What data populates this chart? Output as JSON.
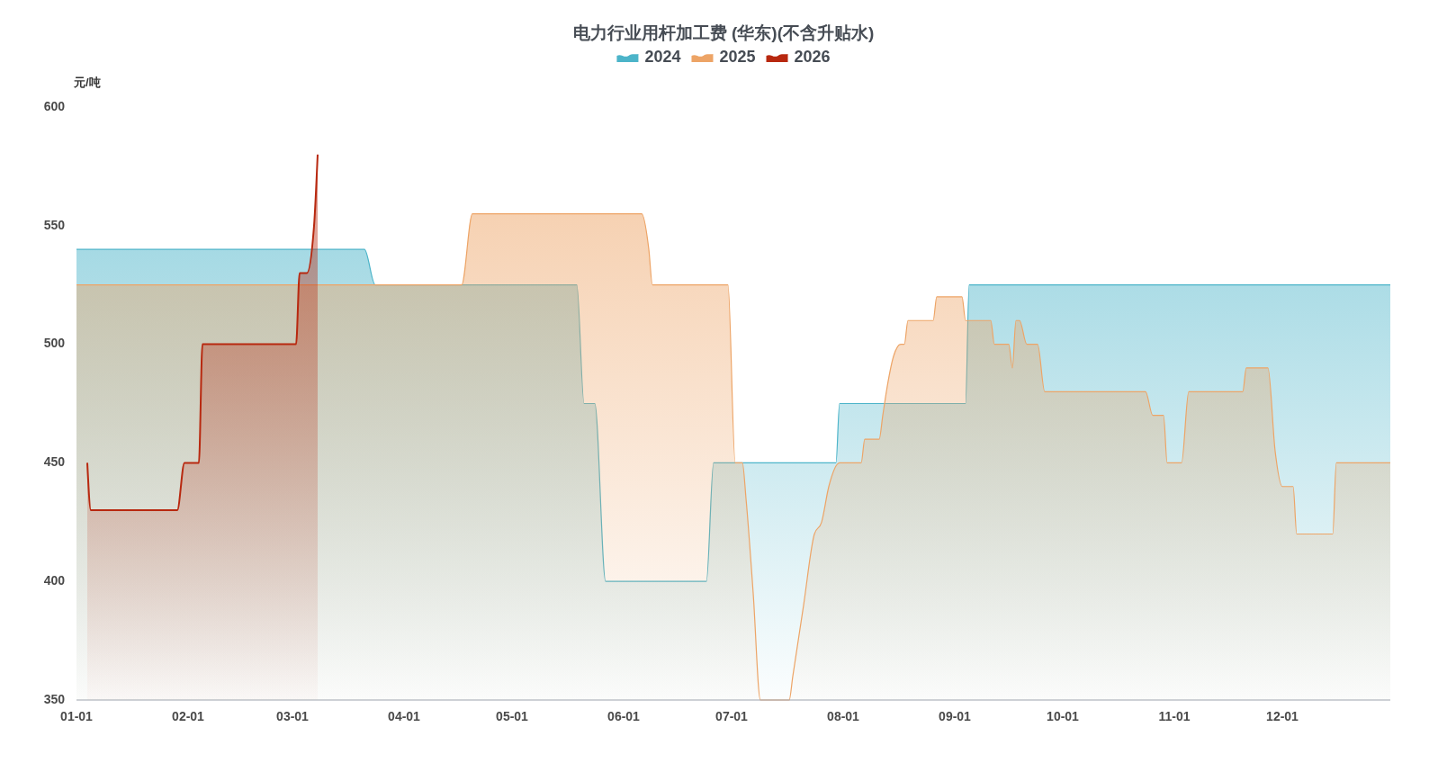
{
  "chart_data": {
    "type": "area",
    "title": "电力行业用杆加工费 (华东)(不含升贴水)",
    "ylabel": "元/吨",
    "legend": "top",
    "xlim": [
      "--01-01",
      "--12-31"
    ],
    "xticks": [
      {
        "value": "--01-01",
        "label": "01-01"
      },
      {
        "value": "--02-01",
        "label": "02-01"
      },
      {
        "value": "--03-01",
        "label": "03-01"
      },
      {
        "value": "--04-01",
        "label": "04-01"
      },
      {
        "value": "--05-01",
        "label": "05-01"
      },
      {
        "value": "--06-01",
        "label": "06-01"
      },
      {
        "value": "--07-01",
        "label": "07-01"
      },
      {
        "value": "--08-01",
        "label": "08-01"
      },
      {
        "value": "--09-01",
        "label": "09-01"
      },
      {
        "value": "--10-01",
        "label": "10-01"
      },
      {
        "value": "--11-01",
        "label": "11-01"
      },
      {
        "value": "--12-01",
        "label": "12-01"
      }
    ],
    "ylim": [
      350,
      600
    ],
    "yticks": [
      350,
      400,
      450,
      500,
      550,
      600
    ],
    "series": [
      {
        "name": "2024",
        "color": "#4cb4c9",
        "x": [
          "--01-01",
          "--03-21",
          "--03-24",
          "--05-19",
          "--05-21",
          "--05-24",
          "--05-27",
          "--06-24",
          "--06-26",
          "--07-30",
          "--07-31",
          "--09-04",
          "--09-05",
          "--12-31"
        ],
        "values": [
          540,
          540,
          525,
          525,
          475,
          475,
          400,
          400,
          450,
          450,
          475,
          475,
          525,
          525
        ]
      },
      {
        "name": "2025",
        "color": "#eda466",
        "x": [
          "--01-01",
          "--04-17",
          "--04-20",
          "--06-06",
          "--06-08",
          "--06-09",
          "--06-30",
          "--07-02",
          "--07-04",
          "--07-05",
          "--07-07",
          "--07-09",
          "--07-17",
          "--07-18",
          "--07-21",
          "--07-24",
          "--07-26",
          "--07-28",
          "--07-31",
          "--08-06",
          "--08-07",
          "--08-11",
          "--08-12",
          "--08-13",
          "--08-15",
          "--08-17",
          "--08-18",
          "--08-19",
          "--08-26",
          "--08-27",
          "--09-03",
          "--09-04",
          "--09-11",
          "--09-12",
          "--09-16",
          "--09-17",
          "--09-18",
          "--09-19",
          "--09-21",
          "--09-24",
          "--09-26",
          "--10-24",
          "--10-26",
          "--10-29",
          "--10-30",
          "--11-03",
          "--11-05",
          "--11-20",
          "--11-21",
          "--11-27",
          "--11-29",
          "--12-01",
          "--12-04",
          "--12-05",
          "--12-15",
          "--12-16",
          "--12-31"
        ],
        "values": [
          525,
          525,
          555,
          555,
          540,
          525,
          525,
          450,
          450,
          435,
          395,
          350,
          350,
          360,
          390,
          420,
          425,
          440,
          450,
          450,
          460,
          460,
          470,
          480,
          495,
          500,
          500,
          510,
          510,
          520,
          520,
          510,
          510,
          500,
          500,
          490,
          510,
          510,
          500,
          500,
          480,
          480,
          470,
          470,
          450,
          450,
          480,
          480,
          490,
          490,
          455,
          440,
          440,
          420,
          420,
          450,
          450
        ]
      },
      {
        "name": "2026",
        "color": "#b8280f",
        "x": [
          "--01-04",
          "--01-05",
          "--01-29",
          "--01-31",
          "--02-04",
          "--02-05",
          "--03-02",
          "--03-03",
          "--03-05",
          "--03-07",
          "--03-08"
        ],
        "values": [
          450,
          430,
          430,
          450,
          450,
          500,
          500,
          530,
          530,
          550,
          580
        ]
      }
    ]
  }
}
